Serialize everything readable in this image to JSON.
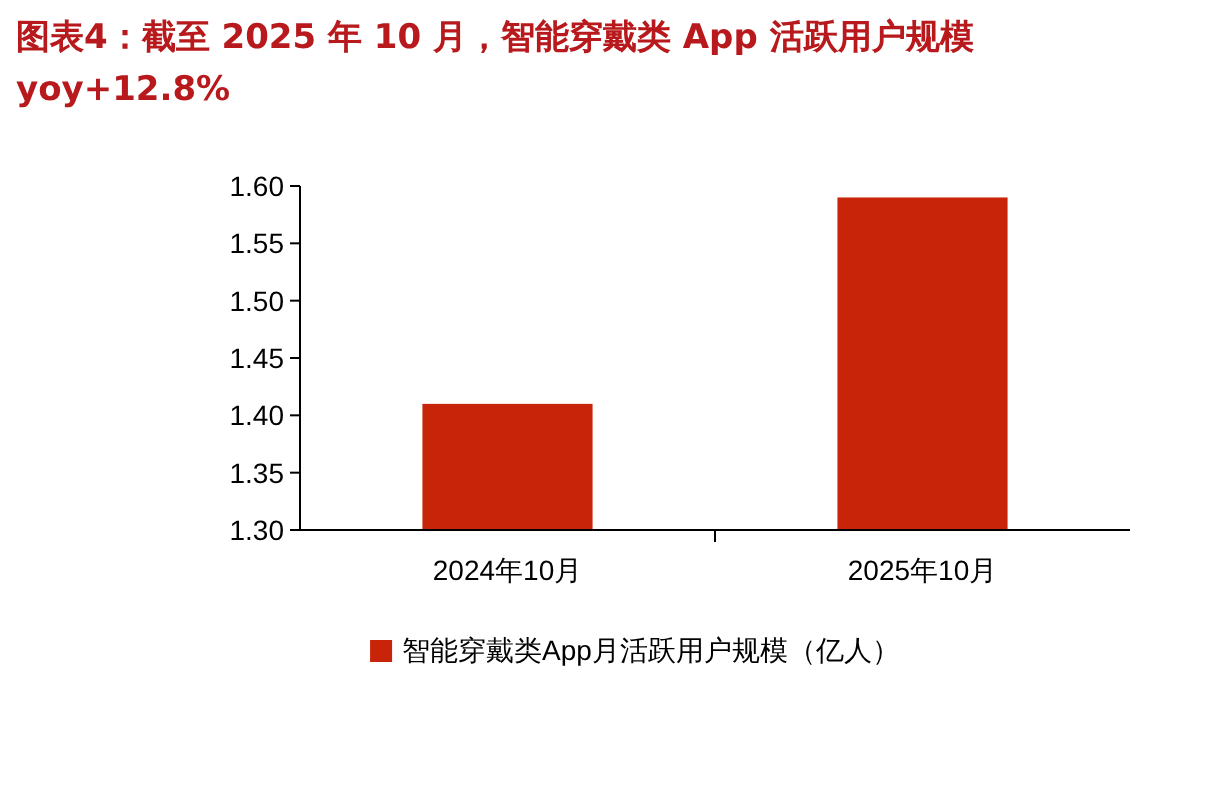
{
  "chart_data": {
    "type": "bar",
    "title": "图表4：截至 2025 年 10 月，智能穿戴类 App 活跃用户规模 yoy+12.8%",
    "categories": [
      "2024年10月",
      "2025年10月"
    ],
    "series": [
      {
        "name": "智能穿戴类App月活跃用户规模（亿人）",
        "color": "#c8240a",
        "values": [
          1.41,
          1.59
        ]
      }
    ],
    "ylim": [
      1.3,
      1.6
    ],
    "yticks": [
      {
        "value": 1.3,
        "label": "1.30"
      },
      {
        "value": 1.35,
        "label": "1.35"
      },
      {
        "value": 1.4,
        "label": "1.40"
      },
      {
        "value": 1.45,
        "label": "1.45"
      },
      {
        "value": 1.5,
        "label": "1.50"
      },
      {
        "value": 1.55,
        "label": "1.55"
      },
      {
        "value": 1.6,
        "label": "1.60"
      }
    ],
    "grid": false,
    "legend": "bottom"
  }
}
